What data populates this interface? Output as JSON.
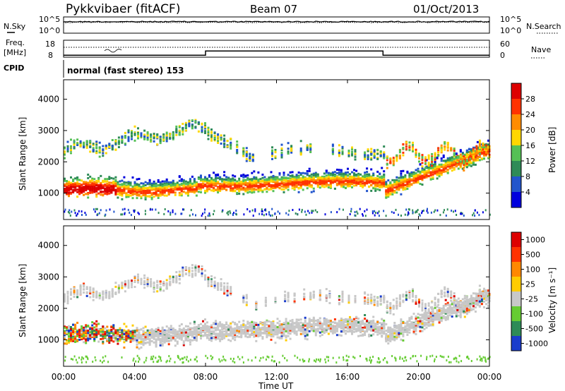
{
  "header": {
    "title": "Pykkvibaer (fitACF)",
    "beam": "Beam 07",
    "date": "01/Oct/2013"
  },
  "labels": {
    "nsky": "N.Sky",
    "freq_line1": "Freq.",
    "freq_line2": "[MHz]",
    "cpid": "CPID",
    "nsearch": "N.Search",
    "nave": "Nave",
    "cpid_value": "normal (fast stereo) 153",
    "nsky_ticks": [
      "10^5",
      "10^0"
    ],
    "nsearch_ticks": [
      "10^5",
      "10^0"
    ],
    "freq_ticks": [
      "18",
      "8"
    ],
    "nave_ticks": [
      "60",
      "0"
    ],
    "xlabel": "Time UT",
    "ylabel": "Slant Range [km]",
    "power_label": "Power [dB]",
    "velocity_label": "Velocity [m s⁻¹]"
  },
  "chart_data": [
    {
      "type": "line",
      "panel": "noise",
      "series": [
        {
          "name": "N.Sky"
        },
        {
          "name": "N.Search"
        }
      ],
      "x_range_hours": [
        0,
        24
      ]
    },
    {
      "type": "line",
      "panel": "frequency",
      "series": [
        {
          "name": "Freq.",
          "x": [
            0,
            8,
            8,
            18,
            18,
            24
          ],
          "values": [
            8.8,
            8.8,
            11.5,
            11.5,
            8.8,
            8.8
          ]
        },
        {
          "name": "Nave",
          "x": [
            0,
            24
          ],
          "values": [
            0,
            0
          ]
        }
      ]
    },
    {
      "type": "heatmap",
      "panel": "power",
      "xlabel": "Time UT",
      "ylabel": "Slant Range [km]",
      "xlim_hours": [
        0,
        24
      ],
      "ylim": [
        180,
        4600
      ],
      "x_ticks": [
        "00:00",
        "04:00",
        "08:00",
        "12:00",
        "16:00",
        "20:00",
        "00:00"
      ],
      "y_ticks": [
        1000,
        2000,
        3000,
        4000
      ],
      "colorbar": {
        "label": "Power [dB]",
        "ticks": [
          4,
          8,
          12,
          16,
          20,
          24,
          28
        ],
        "colors": [
          "#0000dd",
          "#2255cc",
          "#2e8b57",
          "#55c055",
          "#ffd700",
          "#ff8c00",
          "#ff3300",
          "#dd0000"
        ]
      }
    },
    {
      "type": "heatmap",
      "panel": "velocity",
      "xlabel": "Time UT",
      "ylabel": "Slant Range [km]",
      "xlim_hours": [
        0,
        24
      ],
      "ylim": [
        180,
        4600
      ],
      "x_ticks": [
        "00:00",
        "04:00",
        "08:00",
        "12:00",
        "16:00",
        "20:00",
        "00:00"
      ],
      "y_ticks": [
        1000,
        2000,
        3000,
        4000
      ],
      "colorbar": {
        "label": "Velocity [m s⁻¹]",
        "ticks": [
          "1000",
          "500",
          "100",
          "25",
          "-25",
          "-100",
          "-500",
          "-1000"
        ],
        "colors": [
          "#1a3ccc",
          "#2e8b57",
          "#66cc33",
          "#c8c8c8",
          "#ffcc00",
          "#ff8800",
          "#ff3300",
          "#dd0000"
        ]
      }
    }
  ]
}
